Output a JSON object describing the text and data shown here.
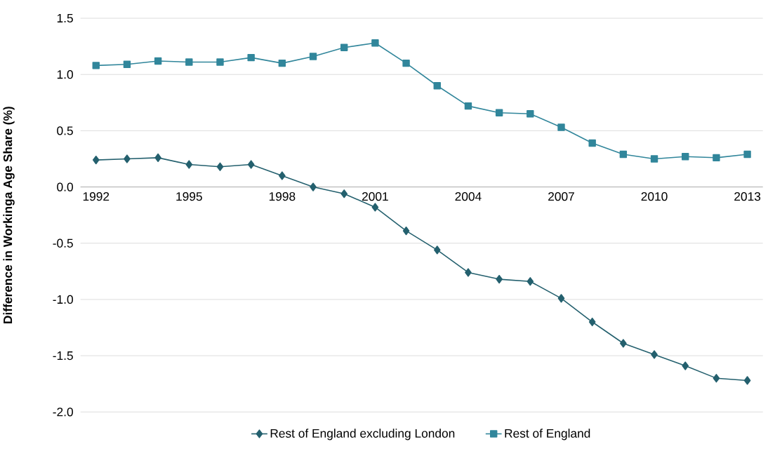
{
  "chart_data": {
    "type": "line",
    "ylabel": "Difference in Workinga Age Share (%)",
    "x": [
      1992,
      1993,
      1994,
      1995,
      1996,
      1997,
      1998,
      1999,
      2000,
      2001,
      2002,
      2003,
      2004,
      2005,
      2006,
      2007,
      2008,
      2009,
      2010,
      2011,
      2012,
      2013
    ],
    "series": [
      {
        "name": "Rest of England excluding London",
        "color": "#24606e",
        "marker": "diamond",
        "values": [
          0.24,
          0.25,
          0.26,
          0.2,
          0.18,
          0.2,
          0.1,
          0.0,
          -0.06,
          -0.18,
          -0.39,
          -0.56,
          -0.76,
          -0.82,
          -0.84,
          -0.99,
          -1.2,
          -1.39,
          -1.49,
          -1.59,
          -1.7,
          -1.72
        ]
      },
      {
        "name": "Rest of England",
        "color": "#31869b",
        "marker": "square",
        "values": [
          1.08,
          1.09,
          1.12,
          1.11,
          1.11,
          1.15,
          1.1,
          1.16,
          1.24,
          1.28,
          1.1,
          0.9,
          0.72,
          0.66,
          0.65,
          0.53,
          0.39,
          0.29,
          0.25,
          0.27,
          0.26,
          0.29
        ]
      }
    ],
    "xlim": [
      1991.5,
      2013.5
    ],
    "ylim": [
      -2.0,
      1.5
    ],
    "xticks": [
      1992,
      1995,
      1998,
      2001,
      2004,
      2007,
      2010,
      2013
    ],
    "yticks": [
      {
        "value": -2.0,
        "label": "-2.0"
      },
      {
        "value": -1.5,
        "label": "-1.5"
      },
      {
        "value": -1.0,
        "label": "-1.0"
      },
      {
        "value": -0.5,
        "label": "-0.5"
      },
      {
        "value": 0.0,
        "label": "0.0"
      },
      {
        "value": 0.5,
        "label": "0.5"
      },
      {
        "value": 1.0,
        "label": "1.0"
      },
      {
        "value": 1.5,
        "label": "1.5"
      }
    ],
    "grid": "y",
    "legend": "bottom",
    "line_style": "solid"
  }
}
